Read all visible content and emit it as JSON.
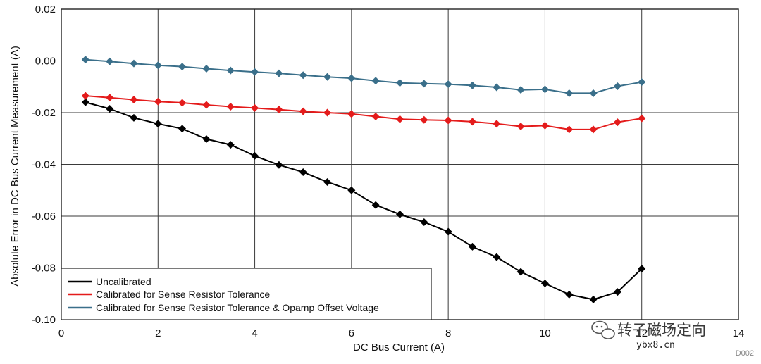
{
  "chart_data": {
    "type": "line",
    "title": "",
    "xlabel": "DC Bus Current (A)",
    "ylabel": "Absolute Error in DC Bus Current Measurement (A)",
    "xlim": [
      0,
      14
    ],
    "ylim": [
      -0.1,
      0.02
    ],
    "xticks": [
      "0",
      "2",
      "4",
      "6",
      "8",
      "10",
      "12",
      "14"
    ],
    "yticks": [
      "0.02",
      "0.00",
      "-0.02",
      "-0.04",
      "-0.06",
      "-0.08",
      "-0.10"
    ],
    "grid": true,
    "legend_position": "bottom-left",
    "x": [
      0.5,
      1,
      1.5,
      2,
      2.5,
      3,
      3.5,
      4,
      4.5,
      5,
      5.5,
      6,
      6.5,
      7,
      7.5,
      8,
      8.5,
      9,
      9.5,
      10,
      10.5,
      11,
      11.5,
      12
    ],
    "series": [
      {
        "name": "Uncalibrated",
        "color": "#000000",
        "values": [
          -0.016,
          -0.0185,
          -0.022,
          -0.0243,
          -0.0262,
          -0.0302,
          -0.0324,
          -0.0367,
          -0.0402,
          -0.043,
          -0.0468,
          -0.05,
          -0.0557,
          -0.0593,
          -0.0623,
          -0.066,
          -0.0718,
          -0.0758,
          -0.0815,
          -0.086,
          -0.0903,
          -0.0922,
          -0.0893,
          -0.0803
        ]
      },
      {
        "name": "Calibrated for Sense Resistor Tolerance",
        "color": "#e41b1b",
        "values": [
          -0.0135,
          -0.0142,
          -0.015,
          -0.0157,
          -0.0162,
          -0.017,
          -0.0177,
          -0.0182,
          -0.0188,
          -0.0195,
          -0.02,
          -0.0205,
          -0.0215,
          -0.0225,
          -0.0228,
          -0.023,
          -0.0235,
          -0.0243,
          -0.0253,
          -0.025,
          -0.0265,
          -0.0265,
          -0.0237,
          -0.0222
        ]
      },
      {
        "name": "Calibrated for Sense Resistor Tolerance & Opamp Offset Voltage",
        "color": "#3a6f8a",
        "values": [
          0.0005,
          -0.0002,
          -0.001,
          -0.0017,
          -0.0022,
          -0.003,
          -0.0037,
          -0.0043,
          -0.0048,
          -0.0055,
          -0.0062,
          -0.0067,
          -0.0077,
          -0.0085,
          -0.0088,
          -0.009,
          -0.0095,
          -0.0102,
          -0.0112,
          -0.011,
          -0.0125,
          -0.0125,
          -0.0098,
          -0.0082
        ]
      }
    ]
  },
  "watermark": {
    "text": "转子磁场定向",
    "url": "ybx8.cn",
    "wechat_icon": "wechat-icon"
  },
  "figure_code": "D002"
}
